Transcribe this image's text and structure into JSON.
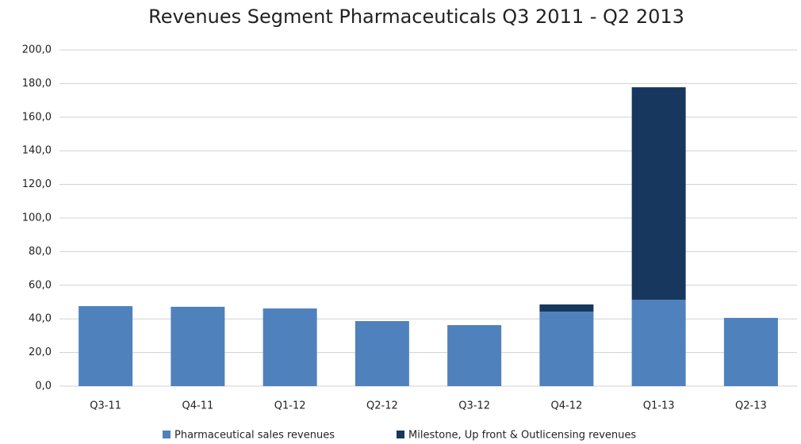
{
  "chart_data": {
    "type": "stacked_bar",
    "title": "Revenues Segment Pharmaceuticals Q3 2011 - Q2 2013",
    "categories": [
      "Q3-11",
      "Q4-11",
      "Q1-12",
      "Q2-12",
      "Q3-12",
      "Q4-12",
      "Q1-13",
      "Q2-13"
    ],
    "series": [
      {
        "name": "Pharmaceutical sales revenues",
        "color": "#4f81bd",
        "values": [
          47.6,
          47.2,
          46.2,
          38.7,
          36.3,
          44.3,
          51.4,
          40.6
        ]
      },
      {
        "name": "Milestone, Up front & Outlicensing revenues",
        "color": "#17375e",
        "values": [
          0,
          0,
          0,
          0,
          0,
          4.3,
          126.4,
          0
        ]
      }
    ],
    "ylim": [
      0,
      200
    ],
    "yticks": [
      {
        "value": 0,
        "label": "0,0"
      },
      {
        "value": 20,
        "label": "20,0"
      },
      {
        "value": 40,
        "label": "40,0"
      },
      {
        "value": 60,
        "label": "60,0"
      },
      {
        "value": 80,
        "label": "80,0"
      },
      {
        "value": 100,
        "label": "100,0"
      },
      {
        "value": 120,
        "label": "120,0"
      },
      {
        "value": 140,
        "label": "140,0"
      },
      {
        "value": 160,
        "label": "160,0"
      },
      {
        "value": 180,
        "label": "180,0"
      },
      {
        "value": 200,
        "label": "200,0"
      }
    ],
    "grid": true,
    "legend": "bottom"
  }
}
